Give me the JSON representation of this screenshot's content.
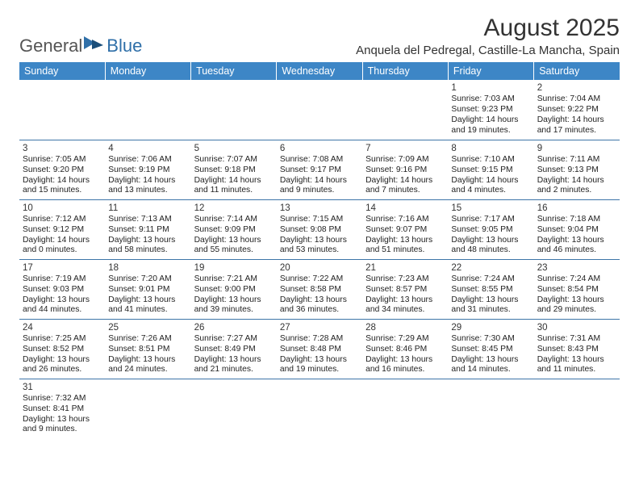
{
  "brand": {
    "part1": "General",
    "part2": "Blue"
  },
  "colors": {
    "header_bg": "#3d86c6",
    "header_text": "#ffffff",
    "row_border": "#3d75a8",
    "brand_blue": "#2f6fa8",
    "text": "#222222"
  },
  "title": "August 2025",
  "location": "Anquela del Pedregal, Castille-La Mancha, Spain",
  "day_names": [
    "Sunday",
    "Monday",
    "Tuesday",
    "Wednesday",
    "Thursday",
    "Friday",
    "Saturday"
  ],
  "first_weekday_index": 5,
  "days": [
    {
      "n": 1,
      "sr": "7:03 AM",
      "ss": "9:23 PM",
      "dl": "14 hours and 19 minutes."
    },
    {
      "n": 2,
      "sr": "7:04 AM",
      "ss": "9:22 PM",
      "dl": "14 hours and 17 minutes."
    },
    {
      "n": 3,
      "sr": "7:05 AM",
      "ss": "9:20 PM",
      "dl": "14 hours and 15 minutes."
    },
    {
      "n": 4,
      "sr": "7:06 AM",
      "ss": "9:19 PM",
      "dl": "14 hours and 13 minutes."
    },
    {
      "n": 5,
      "sr": "7:07 AM",
      "ss": "9:18 PM",
      "dl": "14 hours and 11 minutes."
    },
    {
      "n": 6,
      "sr": "7:08 AM",
      "ss": "9:17 PM",
      "dl": "14 hours and 9 minutes."
    },
    {
      "n": 7,
      "sr": "7:09 AM",
      "ss": "9:16 PM",
      "dl": "14 hours and 7 minutes."
    },
    {
      "n": 8,
      "sr": "7:10 AM",
      "ss": "9:15 PM",
      "dl": "14 hours and 4 minutes."
    },
    {
      "n": 9,
      "sr": "7:11 AM",
      "ss": "9:13 PM",
      "dl": "14 hours and 2 minutes."
    },
    {
      "n": 10,
      "sr": "7:12 AM",
      "ss": "9:12 PM",
      "dl": "14 hours and 0 minutes."
    },
    {
      "n": 11,
      "sr": "7:13 AM",
      "ss": "9:11 PM",
      "dl": "13 hours and 58 minutes."
    },
    {
      "n": 12,
      "sr": "7:14 AM",
      "ss": "9:09 PM",
      "dl": "13 hours and 55 minutes."
    },
    {
      "n": 13,
      "sr": "7:15 AM",
      "ss": "9:08 PM",
      "dl": "13 hours and 53 minutes."
    },
    {
      "n": 14,
      "sr": "7:16 AM",
      "ss": "9:07 PM",
      "dl": "13 hours and 51 minutes."
    },
    {
      "n": 15,
      "sr": "7:17 AM",
      "ss": "9:05 PM",
      "dl": "13 hours and 48 minutes."
    },
    {
      "n": 16,
      "sr": "7:18 AM",
      "ss": "9:04 PM",
      "dl": "13 hours and 46 minutes."
    },
    {
      "n": 17,
      "sr": "7:19 AM",
      "ss": "9:03 PM",
      "dl": "13 hours and 44 minutes."
    },
    {
      "n": 18,
      "sr": "7:20 AM",
      "ss": "9:01 PM",
      "dl": "13 hours and 41 minutes."
    },
    {
      "n": 19,
      "sr": "7:21 AM",
      "ss": "9:00 PM",
      "dl": "13 hours and 39 minutes."
    },
    {
      "n": 20,
      "sr": "7:22 AM",
      "ss": "8:58 PM",
      "dl": "13 hours and 36 minutes."
    },
    {
      "n": 21,
      "sr": "7:23 AM",
      "ss": "8:57 PM",
      "dl": "13 hours and 34 minutes."
    },
    {
      "n": 22,
      "sr": "7:24 AM",
      "ss": "8:55 PM",
      "dl": "13 hours and 31 minutes."
    },
    {
      "n": 23,
      "sr": "7:24 AM",
      "ss": "8:54 PM",
      "dl": "13 hours and 29 minutes."
    },
    {
      "n": 24,
      "sr": "7:25 AM",
      "ss": "8:52 PM",
      "dl": "13 hours and 26 minutes."
    },
    {
      "n": 25,
      "sr": "7:26 AM",
      "ss": "8:51 PM",
      "dl": "13 hours and 24 minutes."
    },
    {
      "n": 26,
      "sr": "7:27 AM",
      "ss": "8:49 PM",
      "dl": "13 hours and 21 minutes."
    },
    {
      "n": 27,
      "sr": "7:28 AM",
      "ss": "8:48 PM",
      "dl": "13 hours and 19 minutes."
    },
    {
      "n": 28,
      "sr": "7:29 AM",
      "ss": "8:46 PM",
      "dl": "13 hours and 16 minutes."
    },
    {
      "n": 29,
      "sr": "7:30 AM",
      "ss": "8:45 PM",
      "dl": "13 hours and 14 minutes."
    },
    {
      "n": 30,
      "sr": "7:31 AM",
      "ss": "8:43 PM",
      "dl": "13 hours and 11 minutes."
    },
    {
      "n": 31,
      "sr": "7:32 AM",
      "ss": "8:41 PM",
      "dl": "13 hours and 9 minutes."
    }
  ],
  "labels": {
    "sunrise": "Sunrise:",
    "sunset": "Sunset:",
    "daylight": "Daylight:"
  }
}
